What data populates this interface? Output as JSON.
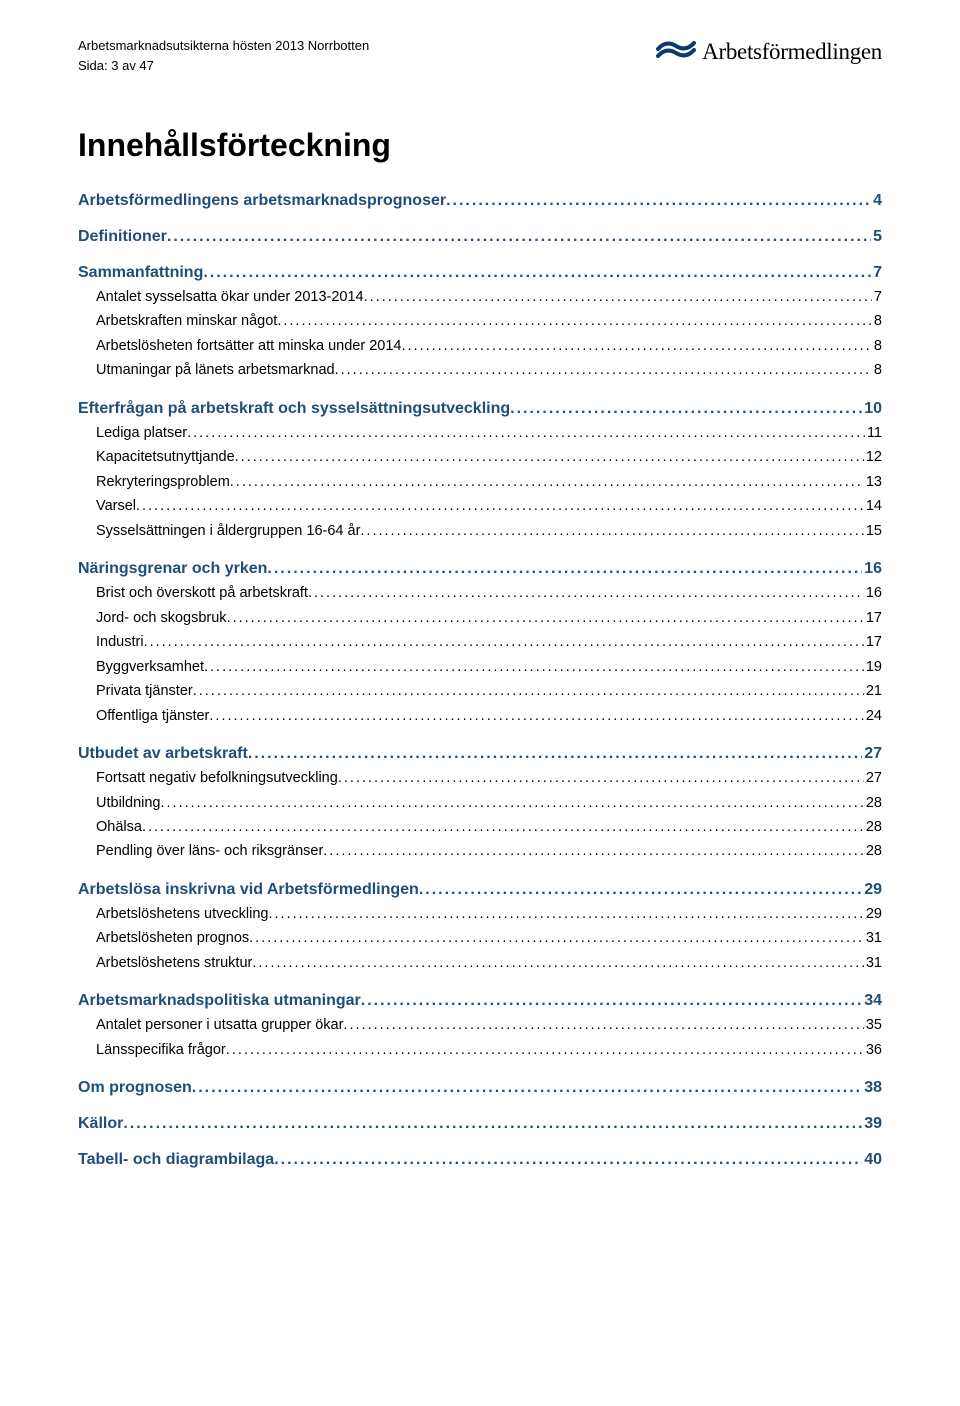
{
  "header": {
    "doc_title": "Arbetsmarknadsutsikterna hösten 2013 Norrbotten",
    "page_indicator": "Sida: 3 av 47",
    "logo_text": "Arbetsförmedlingen"
  },
  "colors": {
    "heading_blue": "#1f4e79",
    "body_text": "#000000",
    "logo_blue": "#0b3a6f",
    "background": "#ffffff"
  },
  "toc": {
    "title": "Innehållsförteckning",
    "entries": [
      {
        "level": 1,
        "label": "Arbetsförmedlingens arbetsmarknadsprognoser",
        "page": "4"
      },
      {
        "level": 1,
        "label": "Definitioner",
        "page": "5"
      },
      {
        "level": 1,
        "label": "Sammanfattning",
        "page": "7"
      },
      {
        "level": 2,
        "label": "Antalet sysselsatta ökar under 2013-2014",
        "page": "7"
      },
      {
        "level": 2,
        "label": "Arbetskraften minskar något",
        "page": "8"
      },
      {
        "level": 2,
        "label": "Arbetslösheten fortsätter att minska under 2014",
        "page": "8"
      },
      {
        "level": 2,
        "label": "Utmaningar på länets arbetsmarknad",
        "page": "8"
      },
      {
        "level": 1,
        "label": "Efterfrågan på arbetskraft och sysselsättningsutveckling",
        "page": "10"
      },
      {
        "level": 2,
        "label": "Lediga platser",
        "page": "11"
      },
      {
        "level": 2,
        "label": "Kapacitetsutnyttjande",
        "page": "12"
      },
      {
        "level": 2,
        "label": "Rekryteringsproblem",
        "page": "13"
      },
      {
        "level": 2,
        "label": "Varsel",
        "page": "14"
      },
      {
        "level": 2,
        "label": "Sysselsättningen i åldergruppen 16-64 år",
        "page": "15"
      },
      {
        "level": 1,
        "label": "Näringsgrenar och yrken",
        "page": "16"
      },
      {
        "level": 2,
        "label": "Brist och överskott på arbetskraft",
        "page": "16"
      },
      {
        "level": 2,
        "label": "Jord- och skogsbruk",
        "page": "17"
      },
      {
        "level": 2,
        "label": "Industri",
        "page": "17"
      },
      {
        "level": 2,
        "label": "Byggverksamhet",
        "page": "19"
      },
      {
        "level": 2,
        "label": "Privata tjänster",
        "page": "21"
      },
      {
        "level": 2,
        "label": "Offentliga tjänster",
        "page": "24"
      },
      {
        "level": 1,
        "label": "Utbudet av arbetskraft",
        "page": "27"
      },
      {
        "level": 2,
        "label": "Fortsatt negativ befolkningsutveckling",
        "page": "27"
      },
      {
        "level": 2,
        "label": "Utbildning",
        "page": "28"
      },
      {
        "level": 2,
        "label": "Ohälsa",
        "page": "28"
      },
      {
        "level": 2,
        "label": "Pendling över läns- och riksgränser",
        "page": "28"
      },
      {
        "level": 1,
        "label": "Arbetslösa inskrivna vid Arbetsförmedlingen",
        "page": "29"
      },
      {
        "level": 2,
        "label": "Arbetslöshetens utveckling",
        "page": "29"
      },
      {
        "level": 2,
        "label": "Arbetslösheten prognos",
        "page": "31"
      },
      {
        "level": 2,
        "label": "Arbetslöshetens struktur",
        "page": "31"
      },
      {
        "level": 1,
        "label": "Arbetsmarknadspolitiska utmaningar",
        "page": "34"
      },
      {
        "level": 2,
        "label": "Antalet personer i utsatta grupper ökar",
        "page": "35"
      },
      {
        "level": 2,
        "label": "Länsspecifika frågor",
        "page": "36"
      },
      {
        "level": 1,
        "label": "Om prognosen",
        "page": "38"
      },
      {
        "level": 1,
        "label": "Källor",
        "page": "39"
      },
      {
        "level": 1,
        "label": "Tabell- och diagrambilaga",
        "page": "40"
      }
    ]
  }
}
